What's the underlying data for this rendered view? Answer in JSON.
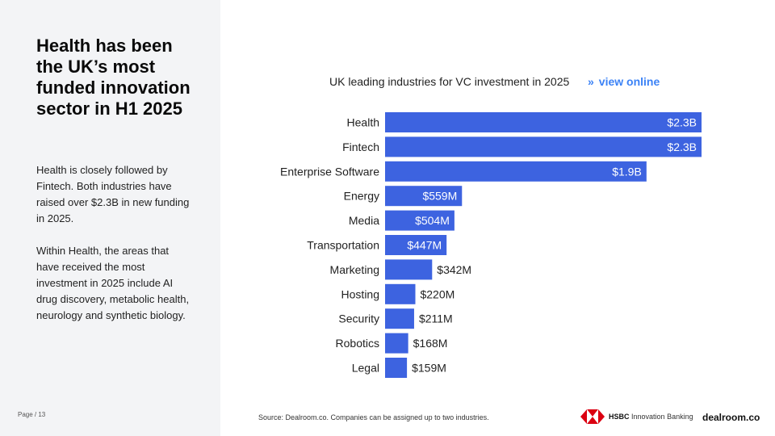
{
  "sidebar": {
    "headline": "Health has been the UK’s most funded innovation sector in H1 2025",
    "paragraph1": "Health is closely followed by Fintech. Both industries have raised over $2.3B in new funding in 2025.",
    "paragraph2": "Within Health, the areas that have received the most investment in 2025 include AI drug discovery, metabolic health, neurology and synthetic biology.",
    "page_label": "Page / 13"
  },
  "chart_header": {
    "title": "UK leading industries for VC investment in 2025",
    "link_arrow": "»",
    "link_label": "view online"
  },
  "footer": {
    "source": "Source:  Dealroom.co. Companies can be assigned up to two industries.",
    "hsbc_bold": "HSBC",
    "hsbc_light": "Innovation Banking",
    "dealroom": "dealroom.co"
  },
  "colors": {
    "bar": "#3d63e0",
    "label_inside": "#ffffff",
    "label_outside": "#222222",
    "link": "#3b82f6"
  },
  "chart_data": {
    "type": "bar",
    "orientation": "horizontal",
    "title": "UK leading industries for VC investment in 2025",
    "xlabel": "",
    "ylabel": "",
    "unit": "USD millions",
    "categories": [
      "Health",
      "Fintech",
      "Enterprise Software",
      "Energy",
      "Media",
      "Transportation",
      "Marketing",
      "Hosting",
      "Security",
      "Robotics",
      "Legal"
    ],
    "values": [
      2300,
      2300,
      1900,
      559,
      504,
      447,
      342,
      220,
      211,
      168,
      159
    ],
    "value_labels": [
      "$2.3B",
      "$2.3B",
      "$1.9B",
      "$559M",
      "$504M",
      "$447M",
      "$342M",
      "$220M",
      "$211M",
      "$168M",
      "$159M"
    ],
    "xlim": [
      0,
      2300
    ],
    "grid": false,
    "legend": "none"
  }
}
